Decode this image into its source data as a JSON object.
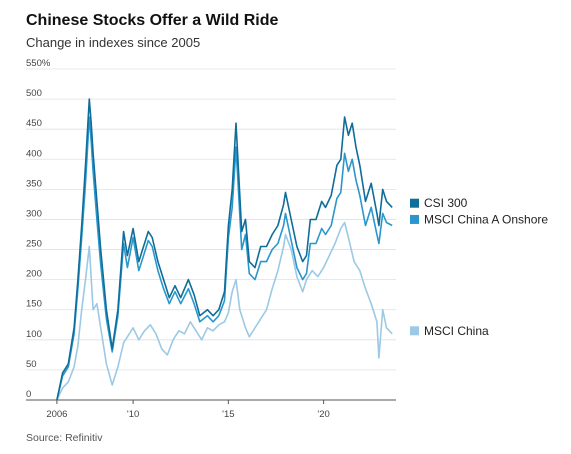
{
  "title": "Chinese Stocks Offer a Wild Ride",
  "subtitle": "Change in indexes since 2005",
  "source": "Source: Refinitiv",
  "colors": {
    "csi300": "#0f6d9a",
    "msci_a": "#2a97cc",
    "msci_china": "#9cc9e4",
    "grid": "#e0e0e0"
  },
  "chart_data": {
    "type": "line",
    "title": "Chinese Stocks Offer a Wild Ride",
    "subtitle": "Change in indexes since 2005",
    "xlabel": "",
    "ylabel": "",
    "xlim": [
      2005.9,
      2023.8
    ],
    "ylim": [
      0,
      550
    ],
    "y_ticks": [
      0,
      50,
      100,
      150,
      200,
      250,
      300,
      350,
      400,
      450,
      500,
      550
    ],
    "y_tick_labels": [
      "0",
      "50",
      "100",
      "150",
      "200",
      "250",
      "300",
      "350",
      "400",
      "450",
      "500",
      "550%"
    ],
    "x_ticks": [
      2006,
      2010,
      2015,
      2020
    ],
    "x_tick_labels": [
      "2006",
      "'10",
      "'15",
      "'20"
    ],
    "grid": true,
    "legend": "right",
    "series": [
      {
        "name": "CSI 300",
        "x": [
          2006.0,
          2006.3,
          2006.6,
          2006.9,
          2007.1,
          2007.3,
          2007.5,
          2007.7,
          2007.8,
          2007.9,
          2008.1,
          2008.3,
          2008.6,
          2008.9,
          2009.2,
          2009.5,
          2009.7,
          2010.0,
          2010.3,
          2010.5,
          2010.8,
          2011.0,
          2011.3,
          2011.6,
          2011.9,
          2012.2,
          2012.5,
          2012.9,
          2013.2,
          2013.5,
          2013.9,
          2014.2,
          2014.5,
          2014.8,
          2015.0,
          2015.2,
          2015.4,
          2015.5,
          2015.7,
          2015.9,
          2016.1,
          2016.4,
          2016.7,
          2017.0,
          2017.3,
          2017.6,
          2017.9,
          2018.0,
          2018.3,
          2018.6,
          2018.9,
          2019.1,
          2019.3,
          2019.6,
          2019.9,
          2020.1,
          2020.4,
          2020.7,
          2020.9,
          2021.1,
          2021.3,
          2021.5,
          2021.7,
          2021.9,
          2022.2,
          2022.5,
          2022.8,
          2022.9,
          2023.1,
          2023.3,
          2023.6
        ],
        "y": [
          0,
          45,
          60,
          120,
          200,
          290,
          390,
          500,
          460,
          410,
          330,
          250,
          150,
          85,
          150,
          280,
          240,
          285,
          230,
          250,
          280,
          270,
          230,
          200,
          170,
          190,
          170,
          200,
          175,
          140,
          150,
          140,
          150,
          180,
          290,
          350,
          460,
          400,
          280,
          300,
          230,
          220,
          255,
          255,
          275,
          290,
          325,
          345,
          300,
          255,
          230,
          240,
          300,
          300,
          330,
          320,
          340,
          390,
          400,
          470,
          440,
          460,
          420,
          390,
          330,
          360,
          310,
          290,
          350,
          330,
          320
        ]
      },
      {
        "name": "MSCI China A Onshore",
        "x": [
          2006.0,
          2006.3,
          2006.6,
          2006.9,
          2007.1,
          2007.3,
          2007.5,
          2007.7,
          2007.8,
          2007.9,
          2008.1,
          2008.3,
          2008.6,
          2008.9,
          2009.2,
          2009.5,
          2009.7,
          2010.0,
          2010.3,
          2010.5,
          2010.8,
          2011.0,
          2011.3,
          2011.6,
          2011.9,
          2012.2,
          2012.5,
          2012.9,
          2013.2,
          2013.5,
          2013.9,
          2014.2,
          2014.5,
          2014.8,
          2015.0,
          2015.2,
          2015.4,
          2015.5,
          2015.7,
          2015.9,
          2016.1,
          2016.4,
          2016.7,
          2017.0,
          2017.3,
          2017.6,
          2017.9,
          2018.0,
          2018.3,
          2018.6,
          2018.9,
          2019.1,
          2019.3,
          2019.6,
          2019.9,
          2020.1,
          2020.4,
          2020.7,
          2020.9,
          2021.1,
          2021.3,
          2021.5,
          2021.7,
          2021.9,
          2022.2,
          2022.5,
          2022.8,
          2022.9,
          2023.1,
          2023.3,
          2023.6
        ],
        "y": [
          0,
          40,
          55,
          110,
          185,
          270,
          360,
          470,
          430,
          380,
          300,
          225,
          135,
          80,
          140,
          260,
          220,
          270,
          215,
          235,
          265,
          255,
          215,
          185,
          160,
          180,
          160,
          185,
          160,
          130,
          140,
          130,
          140,
          165,
          270,
          320,
          420,
          365,
          250,
          275,
          210,
          200,
          230,
          230,
          250,
          260,
          290,
          310,
          265,
          220,
          200,
          210,
          260,
          260,
          285,
          275,
          290,
          335,
          345,
          410,
          380,
          400,
          365,
          340,
          290,
          320,
          275,
          260,
          310,
          295,
          290
        ]
      },
      {
        "name": "MSCI China",
        "x": [
          2006.0,
          2006.3,
          2006.6,
          2006.9,
          2007.1,
          2007.3,
          2007.5,
          2007.7,
          2007.9,
          2008.1,
          2008.3,
          2008.6,
          2008.9,
          2009.2,
          2009.5,
          2009.8,
          2010.0,
          2010.3,
          2010.6,
          2010.9,
          2011.2,
          2011.5,
          2011.8,
          2012.1,
          2012.4,
          2012.7,
          2013.0,
          2013.3,
          2013.6,
          2013.9,
          2014.2,
          2014.5,
          2014.8,
          2015.0,
          2015.2,
          2015.4,
          2015.6,
          2015.9,
          2016.1,
          2016.4,
          2016.7,
          2017.0,
          2017.3,
          2017.6,
          2017.9,
          2018.0,
          2018.3,
          2018.6,
          2018.9,
          2019.1,
          2019.4,
          2019.7,
          2020.0,
          2020.3,
          2020.6,
          2020.9,
          2021.1,
          2021.3,
          2021.6,
          2021.9,
          2022.2,
          2022.5,
          2022.8,
          2022.9,
          2023.1,
          2023.3,
          2023.6
        ],
        "y": [
          0,
          20,
          30,
          55,
          90,
          150,
          200,
          255,
          150,
          160,
          120,
          60,
          25,
          55,
          95,
          110,
          120,
          100,
          115,
          125,
          110,
          85,
          75,
          100,
          115,
          110,
          130,
          115,
          100,
          120,
          115,
          125,
          130,
          145,
          180,
          200,
          150,
          120,
          105,
          120,
          135,
          150,
          185,
          215,
          255,
          275,
          250,
          205,
          180,
          200,
          215,
          205,
          220,
          240,
          260,
          285,
          295,
          270,
          230,
          215,
          185,
          160,
          130,
          70,
          150,
          120,
          110
        ]
      }
    ]
  }
}
